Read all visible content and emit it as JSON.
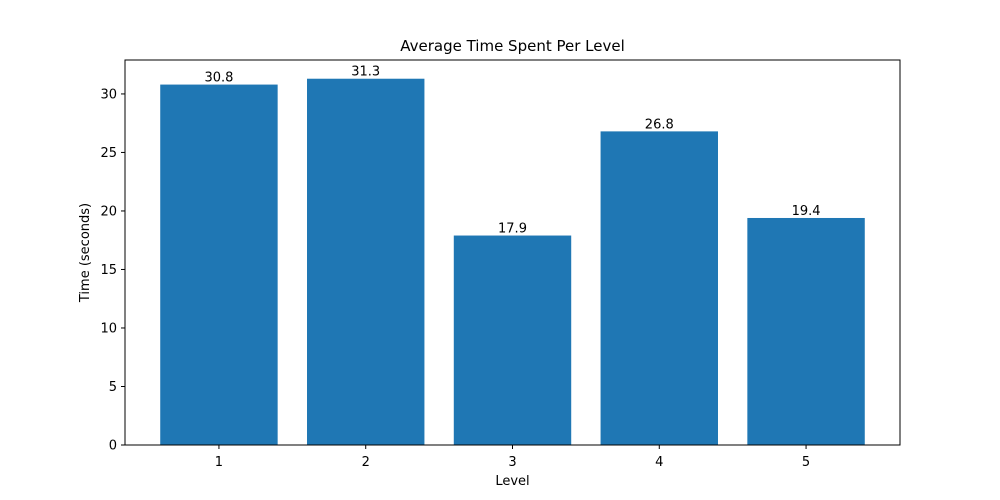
{
  "chart_data": {
    "type": "bar",
    "title": "Average Time Spent Per Level",
    "xlabel": "Level",
    "ylabel": "Time (seconds)",
    "categories": [
      "1",
      "2",
      "3",
      "4",
      "5"
    ],
    "values": [
      30.8,
      31.3,
      17.9,
      26.8,
      19.4
    ],
    "data_labels": [
      "30.8",
      "31.3",
      "17.9",
      "26.8",
      "19.4"
    ],
    "ylim": [
      0,
      32.9
    ],
    "yticks": [
      0,
      5,
      10,
      15,
      20,
      25,
      30
    ],
    "bar_color": "#1f77b4",
    "grid": false,
    "legend": "none"
  }
}
